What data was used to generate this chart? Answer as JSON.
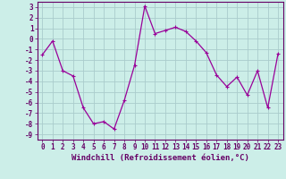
{
  "x": [
    0,
    1,
    2,
    3,
    4,
    5,
    6,
    7,
    8,
    9,
    10,
    11,
    12,
    13,
    14,
    15,
    16,
    17,
    18,
    19,
    20,
    21,
    22,
    23
  ],
  "y": [
    -1.5,
    -0.2,
    -3.0,
    -3.5,
    -6.5,
    -8.0,
    -7.8,
    -8.5,
    -5.8,
    -2.5,
    3.1,
    0.5,
    0.8,
    1.1,
    0.7,
    -0.2,
    -1.3,
    -3.4,
    -4.5,
    -3.6,
    -5.3,
    -3.0,
    -6.5,
    -1.4
  ],
  "line_color": "#990099",
  "marker": "+",
  "marker_size": 3,
  "bg_color": "#cceee8",
  "grid_color": "#aacccc",
  "spine_color": "#660066",
  "xlabel": "Windchill (Refroidissement éolien,°C)",
  "xlim": [
    -0.5,
    23.5
  ],
  "ylim": [
    -9.5,
    3.5
  ],
  "yticks": [
    -9,
    -8,
    -7,
    -6,
    -5,
    -4,
    -3,
    -2,
    -1,
    0,
    1,
    2,
    3
  ],
  "xticks": [
    0,
    1,
    2,
    3,
    4,
    5,
    6,
    7,
    8,
    9,
    10,
    11,
    12,
    13,
    14,
    15,
    16,
    17,
    18,
    19,
    20,
    21,
    22,
    23
  ],
  "tick_label_fontsize": 5.5,
  "xlabel_fontsize": 6.5,
  "line_width": 0.9
}
